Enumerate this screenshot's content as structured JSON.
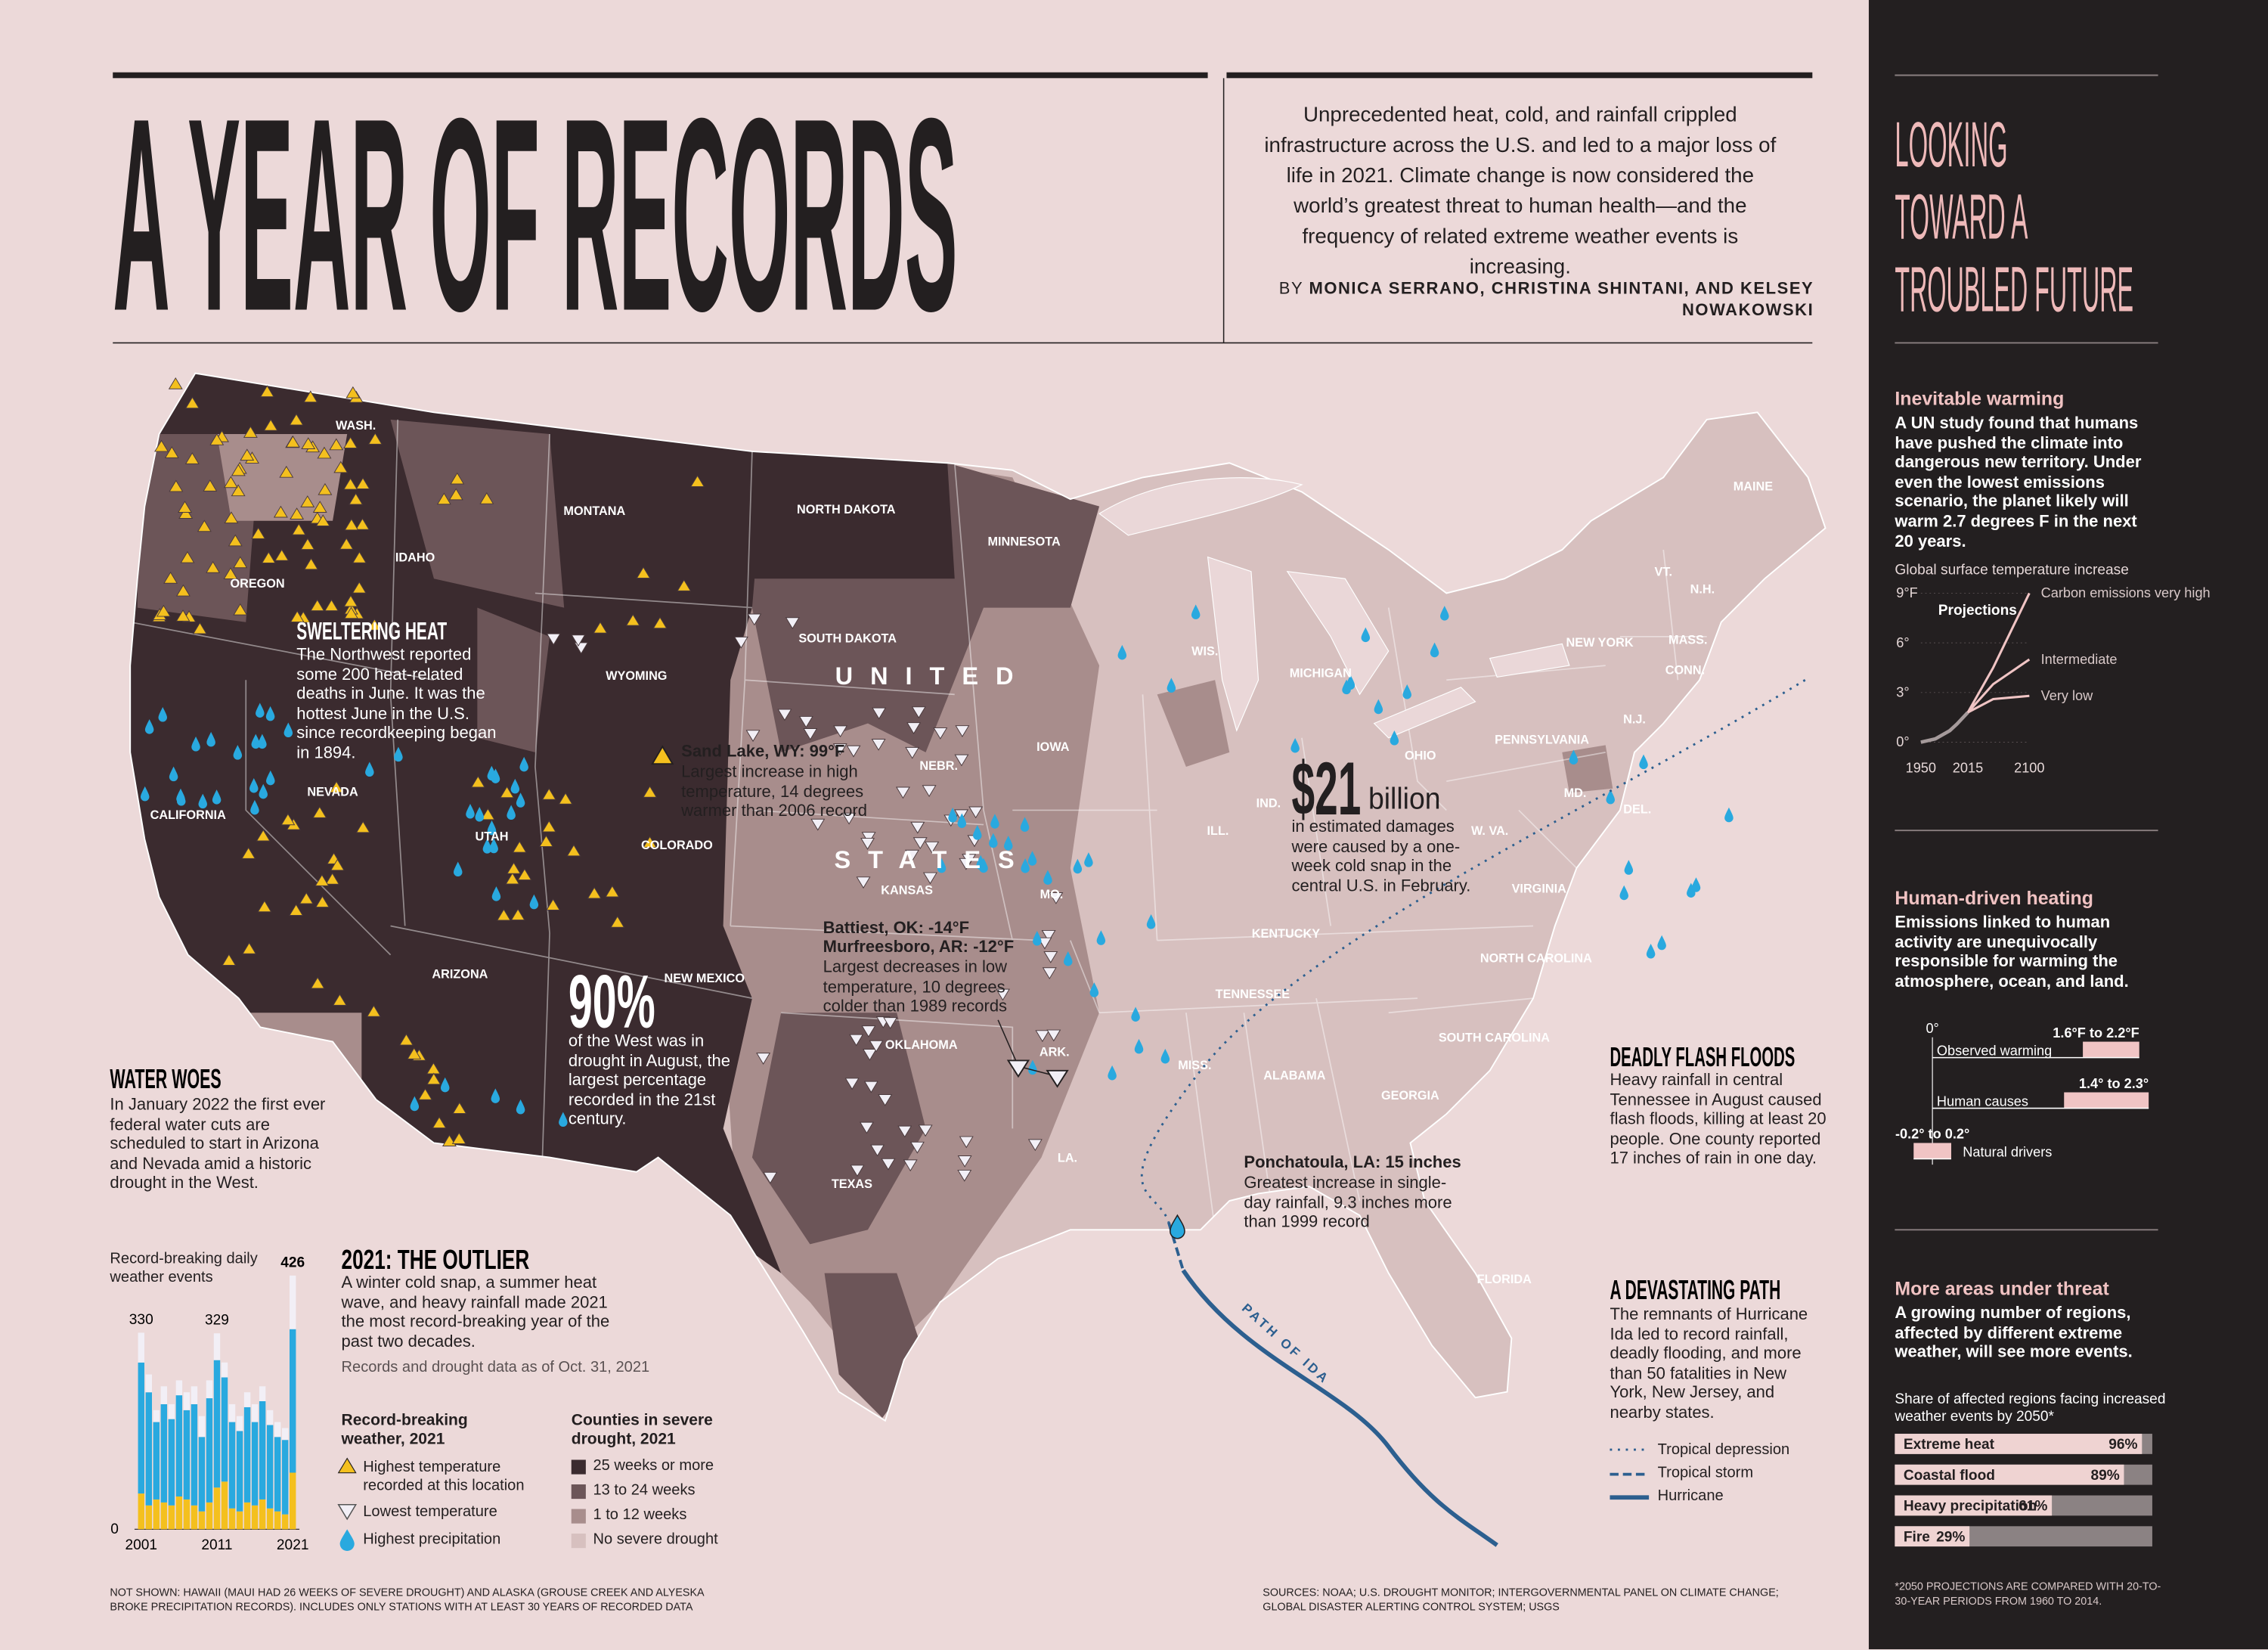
{
  "header": {
    "title": "A YEAR OF RECORDS",
    "deck": "Unprecedented heat, cold, and rainfall crippled infrastructure across the U.S. and led to a major loss of life in 2021. Climate change is now considered the world’s greatest threat to human health—and the frequency of related extreme weather events is increasing.",
    "byline_prefix": "BY",
    "byline": "MONICA SERRANO, CHRISTINA SHINTANI, AND KELSEY NOWAKOWSKI"
  },
  "map": {
    "country": [
      "UNITED",
      "STATES"
    ],
    "ida_label": "PATH OF IDA",
    "state_labels": [
      "WASH.",
      "OREGON",
      "IDAHO",
      "MONTANA",
      "NORTH DAKOTA",
      "MINNESOTA",
      "WYOMING",
      "SOUTH DAKOTA",
      "NEBR.",
      "IOWA",
      "NEVADA",
      "CALIFORNIA",
      "UTAH",
      "COLORADO",
      "KANSAS",
      "MO.",
      "ARIZONA",
      "NEW MEXICO",
      "OKLAHOMA",
      "ARK.",
      "TEXAS",
      "LA.",
      "MISS.",
      "ALABAMA",
      "TENNESSEE",
      "KENTUCKY",
      "GEORGIA",
      "FLORIDA",
      "SOUTH CAROLINA",
      "NORTH CAROLINA",
      "VIRGINIA",
      "W. VA.",
      "MD.",
      "DEL.",
      "N.J.",
      "PENNSYLVANIA",
      "NEW YORK",
      "CONN.",
      "MASS.",
      "VT.",
      "N.H.",
      "MAINE",
      "OHIO",
      "IND.",
      "ILL.",
      "MICHIGAN",
      "WIS."
    ]
  },
  "annotations": {
    "sweltering": {
      "heading": "SWELTERING HEAT",
      "text": "The Northwest reported some 200 heat-related deaths in June. It was the hottest June in the U.S. since recordkeeping began in 1894."
    },
    "sand_lake": {
      "place": "Sand Lake, WY: 99°F",
      "text": "Largest increase in high temperature, 14 degrees warmer than 2006 record"
    },
    "cold": {
      "places": [
        "Battiest, OK: -14°F",
        "Murfreesboro, AR: -12°F"
      ],
      "text": "Largest decreases in low temperature, 10 degrees colder than 1989 records"
    },
    "drought": {
      "big": "90%",
      "text": "of the West was in drought in August, the largest percentage recorded in the 21st century."
    },
    "cost": {
      "big": "$21",
      "unit": "billion",
      "text": "in estimated damages were caused by a one-week cold snap in the central U.S. in February."
    },
    "ponchatoula": {
      "place": "Ponchatoula, LA: 15 inches",
      "text": "Greatest increase in single-day rainfall, 9.3 inches more than 1999 record"
    }
  },
  "water_woes": {
    "heading": "WATER WOES",
    "text": "In January 2022 the first ever federal water cuts are scheduled to start in Arizona and Nevada amid a historic drought in the West."
  },
  "outlier": {
    "heading": "2021: THE OUTLIER",
    "text": "A winter cold snap, a summer heat wave, and heavy rainfall made 2021 the most record-breaking year of the past two decades.",
    "note": "Records and drought data as of Oct. 31, 2021"
  },
  "flash_floods": {
    "heading": "DEADLY FLASH FLOODS",
    "text": "Heavy rainfall in central Tennessee in August caused flash floods, killing at least 20 people. One county reported 17 inches of rain in one day."
  },
  "devastating_path": {
    "heading": "A DEVASTATING PATH",
    "text": "The remnants of Hurricane Ida led to record rainfall, deadly flooding, and more than 50 fatalities in New York, New Jersey, and nearby states."
  },
  "legends": {
    "records_title": "Record-breaking weather, 2021",
    "drought": {
      "title": "Counties in severe drought, 2021",
      "items": [
        {
          "label": "25 weeks or more",
          "color": "#3b2b2f"
        },
        {
          "label": "13 to 24 weeks",
          "color": "#6c5558"
        },
        {
          "label": "1 to 12 weeks",
          "color": "#a88d8c"
        },
        {
          "label": "No severe drought",
          "color": "#d7c0bf"
        }
      ]
    },
    "storm": [
      "Tropical depression",
      "Tropical storm",
      "Hurricane"
    ]
  },
  "sidebar": {
    "title_lines": [
      "LOOKING",
      "TOWARD A",
      "TROUBLED FUTURE"
    ],
    "sections": [
      {
        "heading": "Inevitable warming",
        "text": "A UN study found that humans have pushed the climate into dangerous new territory. Under even the lowest emissions scenario, the planet likely will warm 2.7 degrees F in the next 20 years."
      },
      {
        "heading": "Human-driven heating",
        "text": "Emissions linked to human activity are unequivocally responsible for warming the atmosphere, ocean, and land."
      },
      {
        "heading": "More areas under threat",
        "text": "A growing number of regions, affected by different extreme weather, will see more events."
      }
    ],
    "footnote": "*2050 PROJECTIONS ARE COMPARED WITH 20-TO-30-YEAR PERIODS FROM 1960 TO 2014."
  },
  "footer": {
    "notes": "NOT SHOWN: HAWAII (MAUI HAD 26 WEEKS OF SEVERE DROUGHT) AND ALASKA (GROUSE CREEK AND ALYESKA BROKE PRECIPITATION RECORDS). INCLUDES ONLY STATIONS WITH AT LEAST 30 YEARS OF RECORDED DATA",
    "sources": "SOURCES: NOAA; U.S. DROUGHT MONITOR; INTERGOVERNMENTAL PANEL ON CLIMATE CHANGE; GLOBAL DISASTER ALERTING CONTROL SYSTEM; USGS"
  },
  "chart_data": [
    {
      "type": "bar",
      "stacked": true,
      "title": "Record-breaking daily weather events",
      "categories": [
        "2001",
        null,
        null,
        null,
        null,
        null,
        null,
        null,
        null,
        null,
        "2011",
        null,
        null,
        null,
        null,
        null,
        null,
        null,
        null,
        null,
        "2021"
      ],
      "series": [
        {
          "name": "Highest temperature recorded at this location",
          "color": "#f4c01e",
          "values": [
            60,
            40,
            50,
            45,
            40,
            55,
            50,
            40,
            30,
            45,
            70,
            80,
            35,
            30,
            45,
            40,
            50,
            35,
            30,
            25,
            95
          ]
        },
        {
          "name": "Highest precipitation",
          "color": "#29a9df",
          "values": [
            220,
            190,
            130,
            165,
            145,
            170,
            150,
            170,
            125,
            175,
            214,
            175,
            145,
            135,
            160,
            140,
            165,
            140,
            125,
            125,
            241
          ]
        },
        {
          "name": "Lowest temperature",
          "color": "#f2eff6",
          "values": [
            50,
            30,
            20,
            30,
            25,
            25,
            30,
            30,
            35,
            30,
            45,
            25,
            30,
            25,
            25,
            30,
            25,
            25,
            25,
            20,
            90
          ]
        }
      ],
      "total_labels": [
        330,
        null,
        null,
        null,
        null,
        null,
        null,
        null,
        null,
        null,
        329,
        null,
        null,
        null,
        null,
        null,
        null,
        null,
        null,
        null,
        426
      ],
      "ylim": [
        0,
        430
      ],
      "yticks": [
        0
      ]
    },
    {
      "type": "line",
      "title": "Global surface temperature increase",
      "annotation": "Projections",
      "xlim": [
        1950,
        2100
      ],
      "xticks": [
        1950,
        2015,
        2100
      ],
      "ylim": [
        0,
        9
      ],
      "yticks": [
        {
          "value": 0,
          "label": "0°"
        },
        {
          "value": 3,
          "label": "3°"
        },
        {
          "value": 6,
          "label": "6°"
        },
        {
          "value": 9,
          "label": "9°F"
        }
      ],
      "series": [
        {
          "color": "#a59a9b",
          "x": [
            1950,
            1970,
            1990,
            2000,
            2015
          ],
          "values": [
            0,
            0.2,
            0.7,
            1.1,
            1.8
          ]
        },
        {
          "name": "Carbon emissions very high",
          "color": "#f0c4c4",
          "x": [
            2015,
            2050,
            2100
          ],
          "values": [
            1.8,
            4.5,
            9
          ]
        },
        {
          "name": "Intermediate",
          "color": "#f0c4c4",
          "x": [
            2015,
            2050,
            2100
          ],
          "values": [
            1.8,
            3.5,
            5
          ]
        },
        {
          "name": "Very low",
          "color": "#f0c4c4",
          "x": [
            2015,
            2050,
            2100
          ],
          "values": [
            1.8,
            2.6,
            2.8
          ]
        }
      ]
    },
    {
      "type": "range",
      "orientation": "horizontal",
      "xlim": [
        -0.4,
        2.6
      ],
      "xticks": [
        {
          "value": 0,
          "label": "0°"
        }
      ],
      "series": [
        {
          "name": "Observed warming",
          "color": "#f0c4c4",
          "low": -0.0,
          "values": [
            1.6,
            2.2
          ],
          "value_label": "1.6°F to 2.2°F"
        },
        {
          "name": "Human causes",
          "color": "#f0c4c4",
          "values": [
            1.4,
            2.3
          ],
          "value_label": "1.4° to 2.3°"
        },
        {
          "name": "Natural drivers",
          "color": "#f0c4c4",
          "values": [
            -0.2,
            0.2
          ],
          "value_label": "-0.2° to 0.2°"
        }
      ]
    },
    {
      "type": "bar",
      "orientation": "horizontal",
      "title": "Share of affected regions facing increased weather events by 2050*",
      "categories": [
        "Extreme heat",
        "Coastal flood",
        "Heavy precipitation",
        "Fire"
      ],
      "values": [
        96,
        89,
        61,
        29
      ],
      "value_labels": [
        "96%",
        "89%",
        "61%",
        "29%"
      ],
      "color": "#efd3d2",
      "xlim": [
        0,
        100
      ]
    }
  ]
}
